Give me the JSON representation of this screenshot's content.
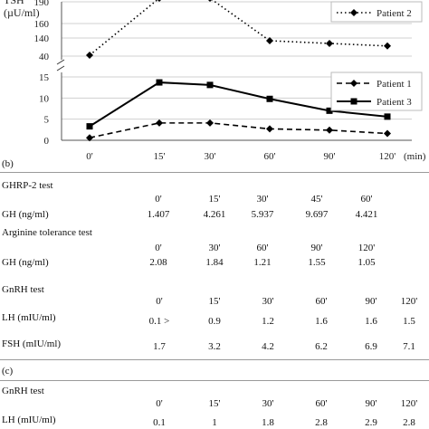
{
  "chart_data": {
    "type": "line",
    "ylabel_line1": "TSH",
    "ylabel_line2": "(µU/ml)",
    "x": [
      "0'",
      "15'",
      "30'",
      "60'",
      "90'",
      "120'"
    ],
    "x_unit": "(min)",
    "upper_ticks": [
      "190",
      "160",
      "140",
      "40"
    ],
    "lower_ticks": [
      "15",
      "10",
      "5",
      "0"
    ],
    "upper_ylim": [
      40,
      190
    ],
    "lower_ylim": [
      0,
      15
    ],
    "series": [
      {
        "name": "Patient 2",
        "panel": "upper",
        "style": "dotted",
        "marker": "diamond",
        "values": [
          45,
          195,
          195,
          125,
          110,
          96
        ]
      },
      {
        "name": "Patient 1",
        "panel": "lower",
        "style": "dashed",
        "marker": "diamond",
        "values": [
          0.6,
          4.1,
          4.1,
          2.7,
          2.4,
          1.6
        ]
      },
      {
        "name": "Patient 3",
        "panel": "lower",
        "style": "solid",
        "marker": "square",
        "values": [
          3.3,
          13.7,
          13.1,
          9.8,
          7.0,
          5.6
        ]
      }
    ],
    "legend_upper": [
      "Patient 2"
    ],
    "legend_lower": [
      "Patient 1",
      "Patient 3"
    ]
  },
  "section_b": {
    "label": "(b)",
    "ghrp2": {
      "title": "GHRP-2 test",
      "times": [
        "0'",
        "15'",
        "30'",
        "45'",
        "60'"
      ],
      "row_label": "GH (ng/ml)",
      "values": [
        "1.407",
        "4.261",
        "5.937",
        "9.697",
        "4.421"
      ]
    },
    "arginine": {
      "title": "Arginine tolerance test",
      "times": [
        "0'",
        "30'",
        "60'",
        "90'",
        "120'"
      ],
      "row_label": "GH (ng/ml)",
      "values": [
        "2.08",
        "1.84",
        "1.21",
        "1.55",
        "1.05"
      ]
    },
    "gnrh": {
      "title": "GnRH test",
      "times": [
        "0'",
        "15'",
        "30'",
        "60'",
        "90'",
        "120'"
      ],
      "lh_label": "LH (mIU/ml)",
      "lh_values": [
        "0.1 >",
        "0.9",
        "1.2",
        "1.6",
        "1.6",
        "1.5"
      ],
      "fsh_label": "FSH (mIU/ml)",
      "fsh_values": [
        "1.7",
        "3.2",
        "4.2",
        "6.2",
        "6.9",
        "7.1"
      ]
    }
  },
  "section_c": {
    "label": "(c)",
    "gnrh": {
      "title": "GnRH test",
      "times": [
        "0'",
        "15'",
        "30'",
        "60'",
        "90'",
        "120'"
      ],
      "lh_label": "LH (mIU/ml)",
      "lh_values": [
        "0.1",
        "1",
        "1.8",
        "2.8",
        "2.9",
        "2.8"
      ]
    }
  }
}
